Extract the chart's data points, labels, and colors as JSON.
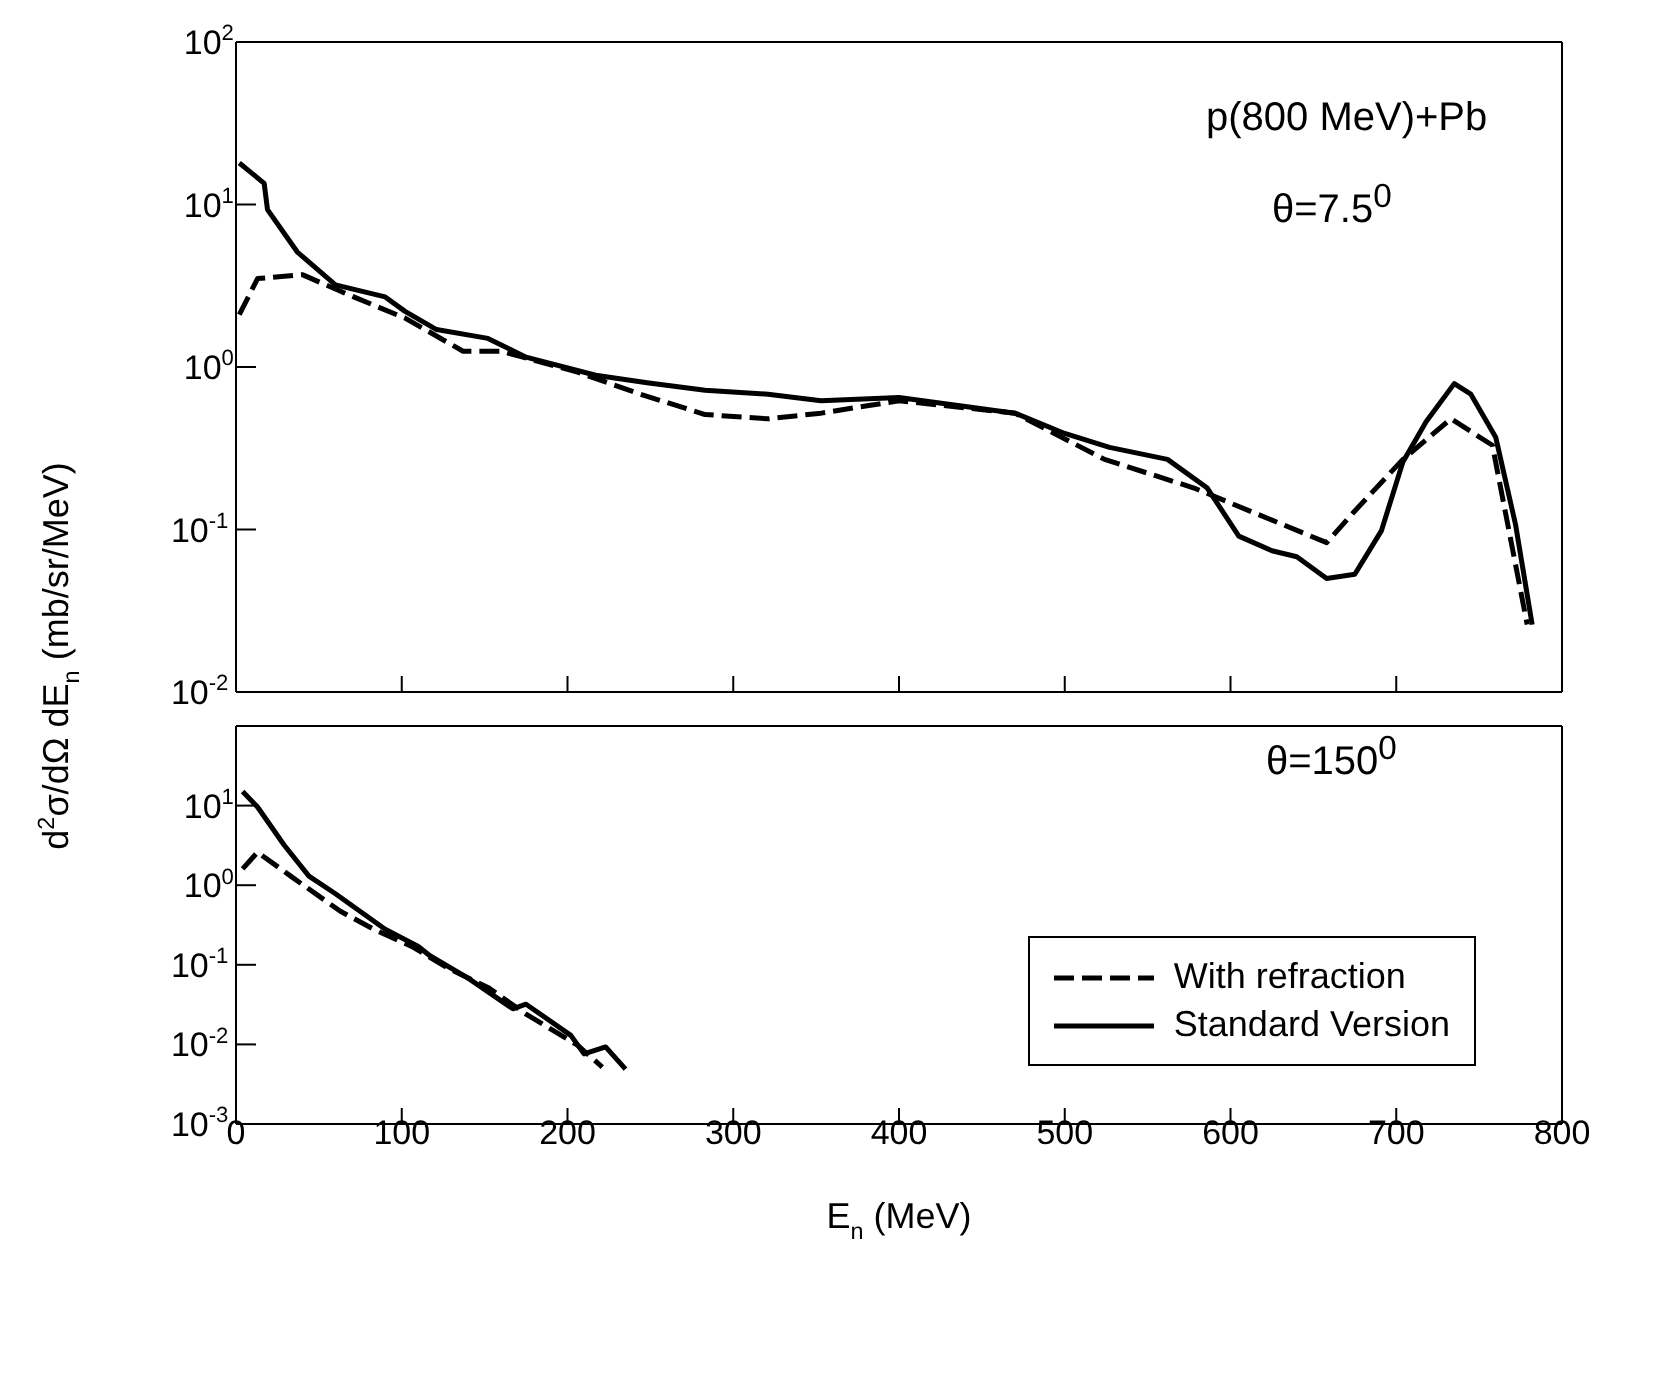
{
  "chart_data": [
    {
      "type": "line",
      "ylabel": "d$^{2}$σ/dΩ dE$_{n}$ (mb/sr/MeV)",
      "annotations": [
        "p(800 MeV)+Pb",
        "θ=7.5$^{0}$"
      ],
      "log": "y",
      "xlim": [
        0,
        800
      ],
      "xticks": [
        0,
        100,
        200,
        300,
        400,
        500,
        600,
        700,
        800
      ],
      "ylim": [
        0.01,
        100
      ],
      "yticks": [
        {
          "value": 0.01,
          "label": "10$^{-2}$"
        },
        {
          "value": 0.1,
          "label": "10$^{-1}$"
        },
        {
          "value": 1,
          "label": "10$^{0}$"
        },
        {
          "value": 10,
          "label": "10$^{1}$"
        },
        {
          "value": 100,
          "label": "10$^{2}$"
        }
      ],
      "tick_labels": "y",
      "legend": false,
      "series": [
        {
          "color": "#000000",
          "line_style": "dashed",
          "x": [
            2,
            13,
            40,
            71,
            102,
            137,
            160,
            206,
            244,
            283,
            321,
            353,
            400,
            470,
            524,
            578,
            658,
            675,
            704,
            733,
            758,
            779
          ],
          "values": [
            2.1,
            3.5,
            3.7,
            2.7,
            2.0,
            1.25,
            1.25,
            0.93,
            0.68,
            0.51,
            0.48,
            0.52,
            0.62,
            0.52,
            0.27,
            0.18,
            0.083,
            0.13,
            0.27,
            0.48,
            0.33,
            0.026
          ]
        },
        {
          "color": "#000000",
          "line_style": "solid",
          "x": [
            2,
            17,
            19,
            37,
            60,
            90,
            102,
            121,
            152,
            175,
            217,
            248,
            283,
            321,
            353,
            400,
            470,
            500,
            527,
            562,
            586,
            605,
            625,
            640,
            658,
            675,
            691,
            704,
            718,
            735,
            745,
            760,
            772,
            782
          ],
          "values": [
            18,
            13.5,
            9.3,
            5.1,
            3.2,
            2.7,
            2.2,
            1.7,
            1.5,
            1.15,
            0.89,
            0.8,
            0.72,
            0.68,
            0.62,
            0.65,
            0.52,
            0.39,
            0.32,
            0.27,
            0.18,
            0.091,
            0.074,
            0.068,
            0.05,
            0.053,
            0.098,
            0.26,
            0.46,
            0.79,
            0.68,
            0.37,
            0.107,
            0.026
          ]
        }
      ]
    },
    {
      "type": "line",
      "xlabel": "E$_{n}$ (MeV)",
      "annotations": [
        "θ=150$^{0}$"
      ],
      "log": "y",
      "xlim": [
        0,
        800
      ],
      "xticks": [
        0,
        100,
        200,
        300,
        400,
        500,
        600,
        700,
        800
      ],
      "ylim": [
        0.001,
        100
      ],
      "yticks": [
        {
          "value": 0.001,
          "label": "10$^{-3}$"
        },
        {
          "value": 0.01,
          "label": "10$^{-2}$"
        },
        {
          "value": 0.1,
          "label": "10$^{-1}$"
        },
        {
          "value": 1,
          "label": "10$^{0}$"
        },
        {
          "value": 10,
          "label": "10$^{1}$"
        },
        {
          "value": 100,
          "label": null
        }
      ],
      "legend": "right",
      "series": [
        {
          "name": "With refraction",
          "color": "#000000",
          "line_style": "dashed",
          "x": [
            4,
            13,
            33,
            63,
            83,
            106,
            129,
            152,
            175,
            206,
            221
          ],
          "values": [
            1.6,
            2.6,
            1.3,
            0.47,
            0.28,
            0.17,
            0.088,
            0.052,
            0.024,
            0.0098,
            0.0052
          ]
        },
        {
          "name": "Standard Version",
          "color": "#000000",
          "line_style": "solid",
          "x": [
            4,
            13,
            29,
            44,
            60,
            90,
            110,
            117,
            140,
            167,
            175,
            202,
            210,
            223,
            235
          ],
          "values": [
            15,
            9.6,
            3.2,
            1.3,
            0.78,
            0.28,
            0.17,
            0.13,
            0.068,
            0.028,
            0.032,
            0.013,
            0.0076,
            0.0093,
            0.0049
          ]
        }
      ]
    }
  ]
}
